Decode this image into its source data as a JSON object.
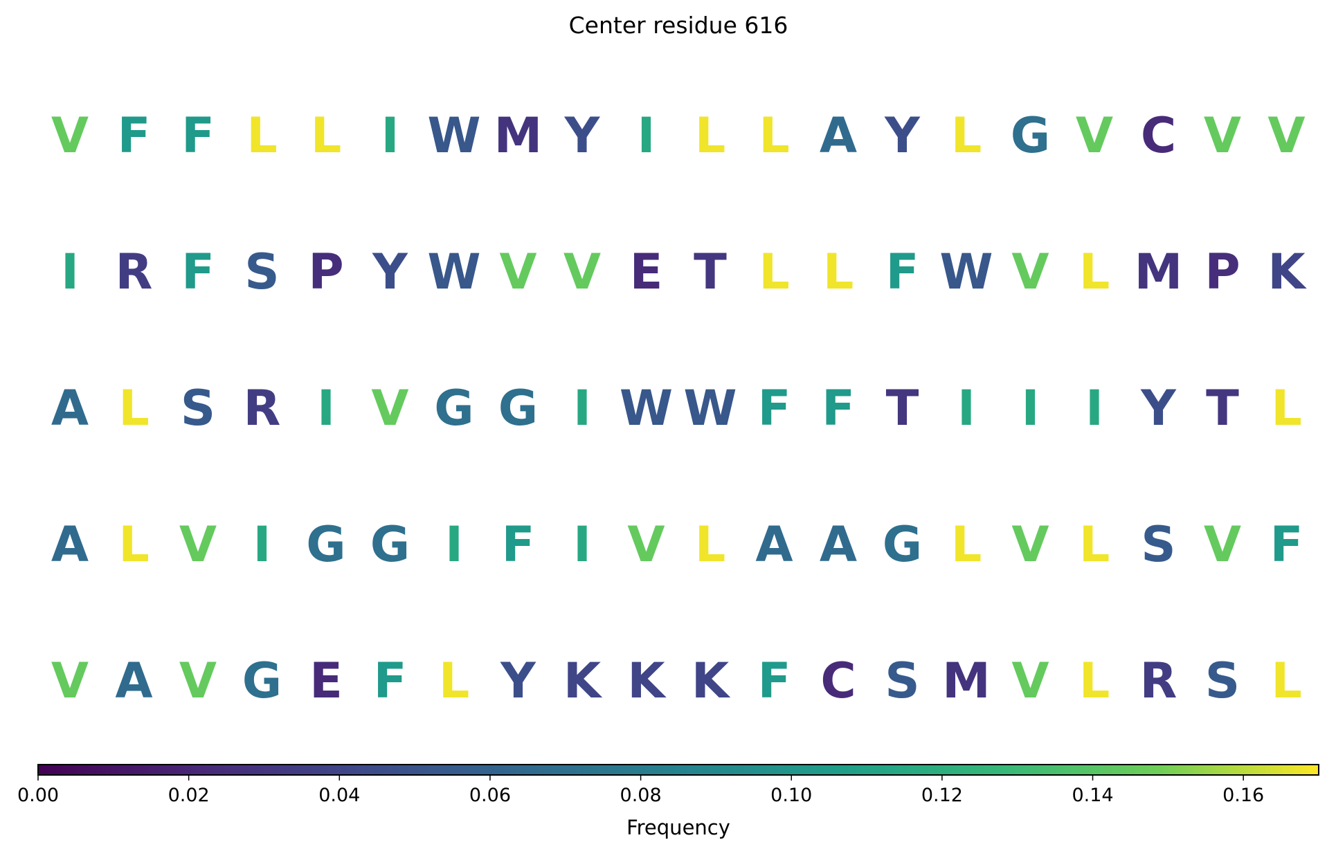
{
  "chart_data": {
    "type": "heatmap",
    "title": "Center residue 616",
    "colorbar": {
      "label": "Frequency",
      "colormap": "viridis",
      "range": [
        0,
        0.17
      ],
      "ticks": [
        "0.00",
        "0.02",
        "0.04",
        "0.06",
        "0.08",
        "0.10",
        "0.12",
        "0.14",
        "0.16"
      ],
      "placement": "bottom"
    },
    "rows": [
      {
        "residues": [
          "V",
          "F",
          "F",
          "L",
          "L",
          "I",
          "W",
          "M",
          "Y",
          "I",
          "L",
          "L",
          "A",
          "Y",
          "L",
          "G",
          "V",
          "C",
          "V",
          "V"
        ],
        "values": [
          0.145,
          0.103,
          0.103,
          0.168,
          0.168,
          0.115,
          0.052,
          0.029,
          0.046,
          0.115,
          0.168,
          0.168,
          0.066,
          0.046,
          0.168,
          0.07,
          0.145,
          0.023,
          0.145,
          0.145
        ]
      },
      {
        "residues": [
          "I",
          "R",
          "F",
          "S",
          "P",
          "Y",
          "W",
          "V",
          "V",
          "E",
          "T",
          "L",
          "L",
          "F",
          "W",
          "V",
          "L",
          "M",
          "P",
          "K"
        ],
        "values": [
          0.115,
          0.035,
          0.103,
          0.054,
          0.025,
          0.046,
          0.052,
          0.145,
          0.145,
          0.023,
          0.03,
          0.168,
          0.168,
          0.103,
          0.052,
          0.145,
          0.168,
          0.029,
          0.025,
          0.04
        ]
      },
      {
        "residues": [
          "A",
          "L",
          "S",
          "R",
          "I",
          "V",
          "G",
          "G",
          "I",
          "W",
          "W",
          "F",
          "F",
          "T",
          "I",
          "I",
          "I",
          "Y",
          "T",
          "L"
        ],
        "values": [
          0.066,
          0.168,
          0.054,
          0.035,
          0.115,
          0.145,
          0.07,
          0.07,
          0.115,
          0.052,
          0.052,
          0.103,
          0.103,
          0.03,
          0.115,
          0.115,
          0.115,
          0.046,
          0.03,
          0.168
        ]
      },
      {
        "residues": [
          "A",
          "L",
          "V",
          "I",
          "G",
          "G",
          "I",
          "F",
          "I",
          "V",
          "L",
          "A",
          "A",
          "G",
          "L",
          "V",
          "L",
          "S",
          "V",
          "F"
        ],
        "values": [
          0.066,
          0.168,
          0.145,
          0.115,
          0.07,
          0.07,
          0.115,
          0.103,
          0.115,
          0.145,
          0.168,
          0.066,
          0.066,
          0.07,
          0.168,
          0.145,
          0.168,
          0.054,
          0.145,
          0.103
        ]
      },
      {
        "residues": [
          "V",
          "A",
          "V",
          "G",
          "E",
          "F",
          "L",
          "Y",
          "K",
          "K",
          "K",
          "F",
          "C",
          "S",
          "M",
          "V",
          "L",
          "R",
          "S",
          "L"
        ],
        "values": [
          0.145,
          0.066,
          0.145,
          0.07,
          0.023,
          0.103,
          0.168,
          0.046,
          0.04,
          0.04,
          0.04,
          0.103,
          0.023,
          0.054,
          0.029,
          0.145,
          0.168,
          0.035,
          0.054,
          0.168
        ]
      }
    ]
  }
}
